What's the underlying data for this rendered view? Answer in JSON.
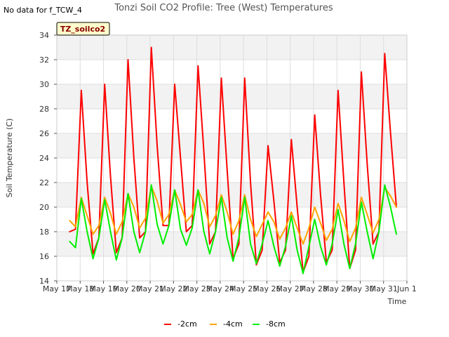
{
  "corner_note": "No data for f_TCW_4",
  "badge_label": "TZ_soilco2",
  "chart_data": {
    "type": "line",
    "title": "Tonzi Soil CO2 Profile: Tree (West) Temperatures",
    "xlabel": "Time",
    "ylabel": "Soil Temperature (C)",
    "ylim": [
      14,
      34
    ],
    "xlim": [
      0,
      15
    ],
    "y_ticks": [
      14,
      16,
      18,
      20,
      22,
      24,
      26,
      28,
      30,
      32,
      34
    ],
    "x_tick_labels": [
      "May 17",
      "May 18",
      "May 19",
      "May 20",
      "May 21",
      "May 22",
      "May 23",
      "May 24",
      "May 25",
      "May 26",
      "May 27",
      "May 28",
      "May 29",
      "May 30",
      "May 31",
      "Jun 1"
    ],
    "x_unit": "days since May 17",
    "grid": true,
    "legend_position": "bottom",
    "series": [
      {
        "name": "-2cm",
        "color": "#ff0000",
        "x": [
          0.55,
          0.8,
          1.05,
          1.3,
          1.55,
          1.8,
          2.05,
          2.3,
          2.55,
          2.8,
          3.05,
          3.3,
          3.55,
          3.8,
          4.05,
          4.3,
          4.55,
          4.8,
          5.05,
          5.3,
          5.55,
          5.8,
          6.05,
          6.3,
          6.55,
          6.8,
          7.05,
          7.3,
          7.55,
          7.8,
          8.05,
          8.3,
          8.55,
          8.8,
          9.05,
          9.3,
          9.55,
          9.8,
          10.05,
          10.3,
          10.55,
          10.8,
          11.05,
          11.3,
          11.55,
          11.8,
          12.05,
          12.3,
          12.55,
          12.8,
          13.05,
          13.3,
          13.55,
          13.8,
          14.05,
          14.3,
          14.55
        ],
        "y": [
          18.0,
          18.2,
          29.5,
          22.0,
          16.2,
          17.5,
          30.0,
          22.5,
          16.3,
          17.5,
          32.0,
          24.0,
          17.5,
          18.0,
          33.0,
          25.0,
          18.5,
          18.5,
          30.0,
          24.0,
          18.0,
          18.5,
          31.5,
          24.5,
          17.0,
          18.0,
          30.5,
          23.0,
          15.8,
          17.0,
          30.5,
          22.0,
          15.3,
          16.5,
          25.0,
          20.5,
          15.5,
          16.5,
          25.5,
          20.0,
          14.7,
          16.0,
          27.5,
          21.0,
          15.5,
          16.5,
          29.5,
          22.0,
          15.0,
          16.5,
          31.0,
          23.5,
          17.0,
          18.0,
          32.5,
          26.0,
          20.0
        ]
      },
      {
        "name": "-4cm",
        "color": "#ffa500",
        "x": [
          0.55,
          0.8,
          1.05,
          1.3,
          1.55,
          1.8,
          2.05,
          2.3,
          2.55,
          2.8,
          3.05,
          3.3,
          3.55,
          3.8,
          4.05,
          4.3,
          4.55,
          4.8,
          5.05,
          5.3,
          5.55,
          5.8,
          6.05,
          6.3,
          6.55,
          6.8,
          7.05,
          7.3,
          7.55,
          7.8,
          8.05,
          8.3,
          8.55,
          8.8,
          9.05,
          9.3,
          9.55,
          9.8,
          10.05,
          10.3,
          10.55,
          10.8,
          11.05,
          11.3,
          11.55,
          11.8,
          12.05,
          12.3,
          12.55,
          12.8,
          13.05,
          13.3,
          13.55,
          13.8,
          14.05,
          14.3,
          14.55
        ],
        "y": [
          18.9,
          18.4,
          20.8,
          19.3,
          17.8,
          18.5,
          20.8,
          19.5,
          17.8,
          18.8,
          21.1,
          20.0,
          18.3,
          19.1,
          21.7,
          20.5,
          18.7,
          19.4,
          21.4,
          20.2,
          18.8,
          19.4,
          21.4,
          20.3,
          18.4,
          19.3,
          21.0,
          19.6,
          17.8,
          18.9,
          21.0,
          19.0,
          17.6,
          18.6,
          19.6,
          18.8,
          17.4,
          18.3,
          19.6,
          18.3,
          17.0,
          18.3,
          20.0,
          18.7,
          17.3,
          18.2,
          20.3,
          18.9,
          17.2,
          18.3,
          20.8,
          19.4,
          17.9,
          19.0,
          21.6,
          20.9,
          20.0
        ]
      },
      {
        "name": "-8cm",
        "color": "#00ee00",
        "x": [
          0.55,
          0.8,
          1.05,
          1.3,
          1.55,
          1.8,
          2.05,
          2.3,
          2.55,
          2.8,
          3.05,
          3.3,
          3.55,
          3.8,
          4.05,
          4.3,
          4.55,
          4.8,
          5.05,
          5.3,
          5.55,
          5.8,
          6.05,
          6.3,
          6.55,
          6.8,
          7.05,
          7.3,
          7.55,
          7.8,
          8.05,
          8.3,
          8.55,
          8.8,
          9.05,
          9.3,
          9.55,
          9.8,
          10.05,
          10.3,
          10.55,
          10.8,
          11.05,
          11.3,
          11.55,
          11.8,
          12.05,
          12.3,
          12.55,
          12.8,
          13.05,
          13.3,
          13.55,
          13.8,
          14.05,
          14.3,
          14.55
        ],
        "y": [
          17.2,
          16.7,
          20.7,
          18.0,
          15.8,
          17.5,
          20.6,
          18.0,
          15.7,
          17.5,
          21.1,
          18.0,
          16.3,
          18.0,
          21.8,
          18.6,
          17.0,
          18.5,
          21.4,
          18.2,
          16.9,
          18.3,
          21.4,
          18.0,
          16.2,
          18.0,
          20.8,
          17.5,
          15.6,
          17.5,
          20.8,
          17.0,
          15.4,
          17.0,
          18.9,
          16.8,
          15.2,
          16.8,
          19.3,
          16.5,
          14.6,
          16.8,
          19.0,
          16.8,
          15.3,
          17.0,
          19.8,
          17.0,
          15.0,
          17.0,
          20.4,
          18.0,
          15.8,
          18.0,
          21.8,
          20.0,
          17.8
        ]
      }
    ]
  }
}
